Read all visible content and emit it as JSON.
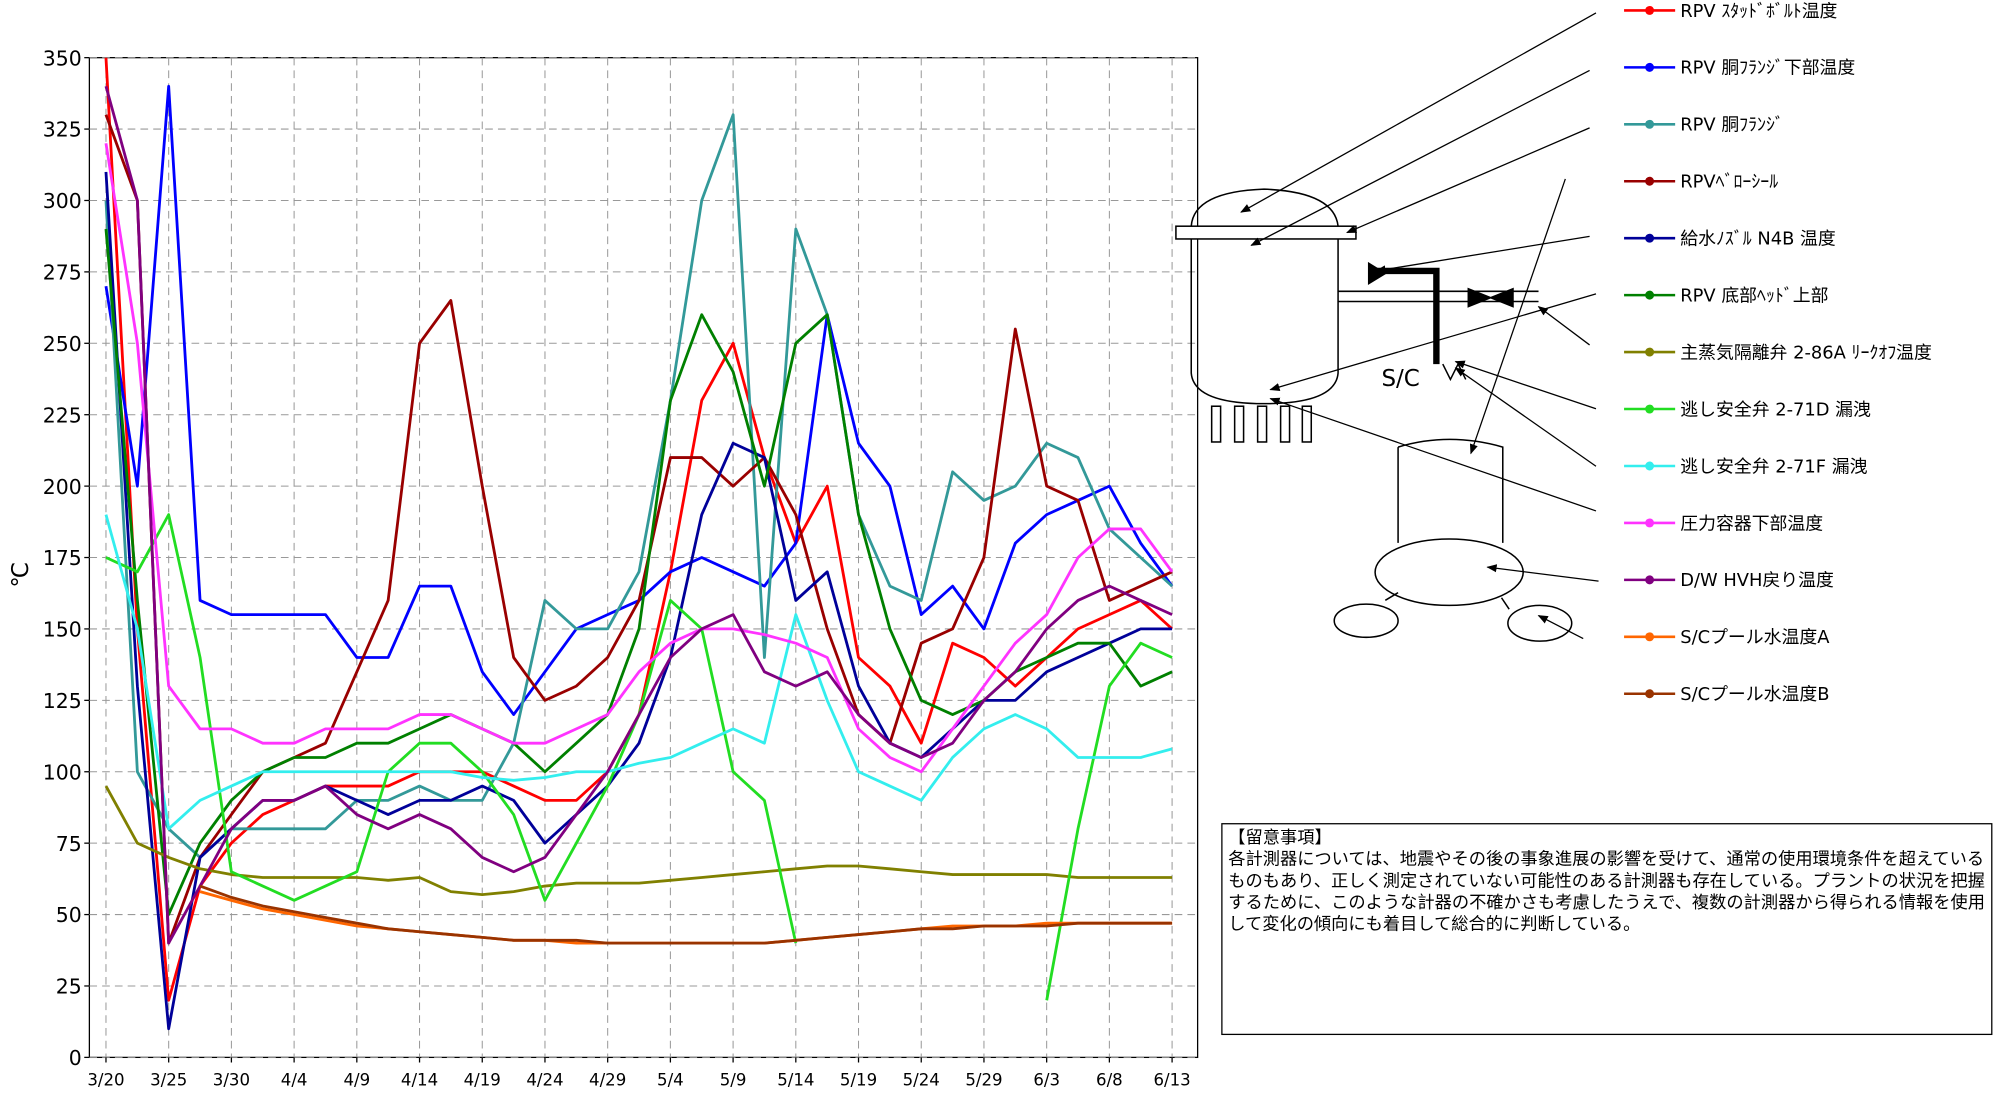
{
  "chart_data": {
    "type": "line",
    "y_label": "℃",
    "categories": [
      "3/20",
      null,
      "3/25",
      null,
      "3/30",
      null,
      "4/4",
      null,
      "4/9",
      null,
      "4/14",
      null,
      "4/19",
      null,
      "4/24",
      null,
      "4/29",
      null,
      "5/4",
      null,
      "5/9",
      null,
      "5/14",
      null,
      "5/19",
      null,
      "5/24",
      null,
      "5/29",
      null,
      "6/3",
      null,
      "6/8",
      null,
      "6/13"
    ],
    "ylim": [
      0,
      350
    ],
    "yticks": [
      0,
      25,
      50,
      75,
      100,
      125,
      150,
      175,
      200,
      225,
      250,
      275,
      300,
      325,
      350
    ],
    "grid": true,
    "series": [
      {
        "name": "RPV ｽﾀｯﾄﾞﾎﾞﾙﾄ温度",
        "color": "#ff0000",
        "values": [
          350,
          150,
          20,
          60,
          75,
          85,
          90,
          95,
          95,
          95,
          100,
          100,
          100,
          95,
          90,
          90,
          100,
          120,
          170,
          230,
          250,
          210,
          180,
          200,
          140,
          130,
          110,
          145,
          140,
          130,
          140,
          150,
          155,
          160,
          150
        ]
      },
      {
        "name": "RPV 胴ﾌﾗﾝｼﾞ下部温度",
        "color": "#0000ff",
        "values": [
          270,
          200,
          340,
          160,
          155,
          155,
          155,
          155,
          140,
          140,
          165,
          165,
          135,
          120,
          135,
          150,
          155,
          160,
          170,
          175,
          170,
          165,
          180,
          260,
          215,
          200,
          155,
          165,
          150,
          180,
          190,
          195,
          200,
          180,
          165
        ]
      },
      {
        "name": "RPV 胴ﾌﾗﾝｼﾞ",
        "color": "#339999",
        "values": [
          300,
          100,
          80,
          70,
          80,
          80,
          80,
          80,
          90,
          90,
          95,
          90,
          90,
          110,
          160,
          150,
          150,
          170,
          230,
          300,
          330,
          140,
          290,
          260,
          190,
          165,
          160,
          205,
          195,
          200,
          215,
          210,
          185,
          175,
          165
        ]
      },
      {
        "name": "RPVﾍﾞﾛｰｼｰﾙ",
        "color": "#990000",
        "values": [
          330,
          300,
          40,
          70,
          85,
          100,
          105,
          110,
          135,
          160,
          250,
          265,
          200,
          140,
          125,
          130,
          140,
          160,
          210,
          210,
          200,
          210,
          190,
          150,
          120,
          110,
          145,
          150,
          175,
          255,
          200,
          195,
          160,
          165,
          170
        ]
      },
      {
        "name": "給水ﾉｽﾞﾙ N4B 温度",
        "color": "#000099",
        "values": [
          310,
          130,
          10,
          70,
          80,
          90,
          90,
          95,
          90,
          85,
          90,
          90,
          95,
          90,
          75,
          85,
          95,
          110,
          140,
          190,
          215,
          210,
          160,
          170,
          130,
          110,
          105,
          115,
          125,
          125,
          135,
          140,
          145,
          150,
          150
        ]
      },
      {
        "name": " RPV 底部ﾍｯﾄﾞ上部",
        "color": "#008000",
        "values": [
          290,
          160,
          50,
          75,
          90,
          100,
          105,
          105,
          110,
          110,
          115,
          120,
          115,
          110,
          100,
          110,
          120,
          150,
          230,
          260,
          240,
          200,
          250,
          260,
          190,
          150,
          125,
          120,
          125,
          135,
          140,
          145,
          145,
          130,
          135
        ]
      },
      {
        "name": "主蒸気隔離弁 2-86A ﾘｰｸｵﾌ温度",
        "color": "#808000",
        "values": [
          95,
          75,
          70,
          66,
          64,
          63,
          63,
          63,
          63,
          62,
          63,
          58,
          57,
          58,
          60,
          61,
          61,
          61,
          62,
          63,
          64,
          65,
          66,
          67,
          67,
          66,
          65,
          64,
          64,
          64,
          64,
          63,
          63,
          63,
          63
        ]
      },
      {
        "name": "逃し安全弁 2-71D 漏洩",
        "color": "#22dd22",
        "values": [
          175,
          170,
          190,
          140,
          65,
          60,
          55,
          60,
          65,
          100,
          110,
          110,
          100,
          85,
          55,
          75,
          95,
          120,
          160,
          150,
          100,
          90,
          40,
          null,
          null,
          null,
          null,
          null,
          null,
          null,
          20,
          80,
          130,
          145,
          140
        ]
      },
      {
        "name": "逃し安全弁 2-71F 漏洩",
        "color": "#33eeee",
        "values": [
          190,
          150,
          80,
          90,
          95,
          100,
          100,
          100,
          100,
          100,
          100,
          100,
          98,
          97,
          98,
          100,
          100,
          103,
          105,
          110,
          115,
          110,
          155,
          125,
          100,
          95,
          90,
          105,
          115,
          120,
          115,
          105,
          105,
          105,
          108
        ]
      },
      {
        "name": "圧力容器下部温度",
        "color": "#ff33ff",
        "values": [
          320,
          250,
          130,
          115,
          115,
          110,
          110,
          115,
          115,
          115,
          120,
          120,
          115,
          110,
          110,
          115,
          120,
          135,
          145,
          150,
          150,
          148,
          145,
          140,
          115,
          105,
          100,
          115,
          130,
          145,
          155,
          175,
          185,
          185,
          170
        ]
      },
      {
        "name": "D/W HVH戻り温度",
        "color": "#800080",
        "values": [
          340,
          300,
          40,
          60,
          80,
          90,
          90,
          95,
          85,
          80,
          85,
          80,
          70,
          65,
          70,
          85,
          100,
          120,
          140,
          150,
          155,
          135,
          130,
          135,
          120,
          110,
          105,
          110,
          125,
          135,
          150,
          160,
          165,
          160,
          155
        ]
      },
      {
        "name": "S/Cプール水温度A",
        "color": "#ff6600",
        "values": [
          null,
          null,
          null,
          58,
          55,
          52,
          50,
          48,
          46,
          45,
          44,
          43,
          42,
          41,
          41,
          40,
          40,
          40,
          40,
          40,
          40,
          40,
          41,
          42,
          43,
          44,
          45,
          46,
          46,
          46,
          47,
          47,
          47,
          47,
          47
        ]
      },
      {
        "name": "S/Cプール水温度B",
        "color": "#993300",
        "values": [
          null,
          null,
          null,
          60,
          56,
          53,
          51,
          49,
          47,
          45,
          44,
          43,
          42,
          41,
          41,
          41,
          40,
          40,
          40,
          40,
          40,
          40,
          41,
          42,
          43,
          44,
          45,
          45,
          46,
          46,
          46,
          47,
          47,
          47,
          47
        ]
      }
    ]
  },
  "diagram": {
    "sc_label": "S/C"
  },
  "note": {
    "heading": "【留意事項】",
    "body": "各計測器については、地震やその後の事象進展の影響を受けて、通常の使用環境条件を超えているものもあり、正しく測定されていない可能性のある計測器も存在している。プラントの状況を把握するために、このような計器の不確かさも考慮したうえで、複数の計測器から得られる情報を使用して変化の傾向にも着目して総合的に判断している。"
  }
}
